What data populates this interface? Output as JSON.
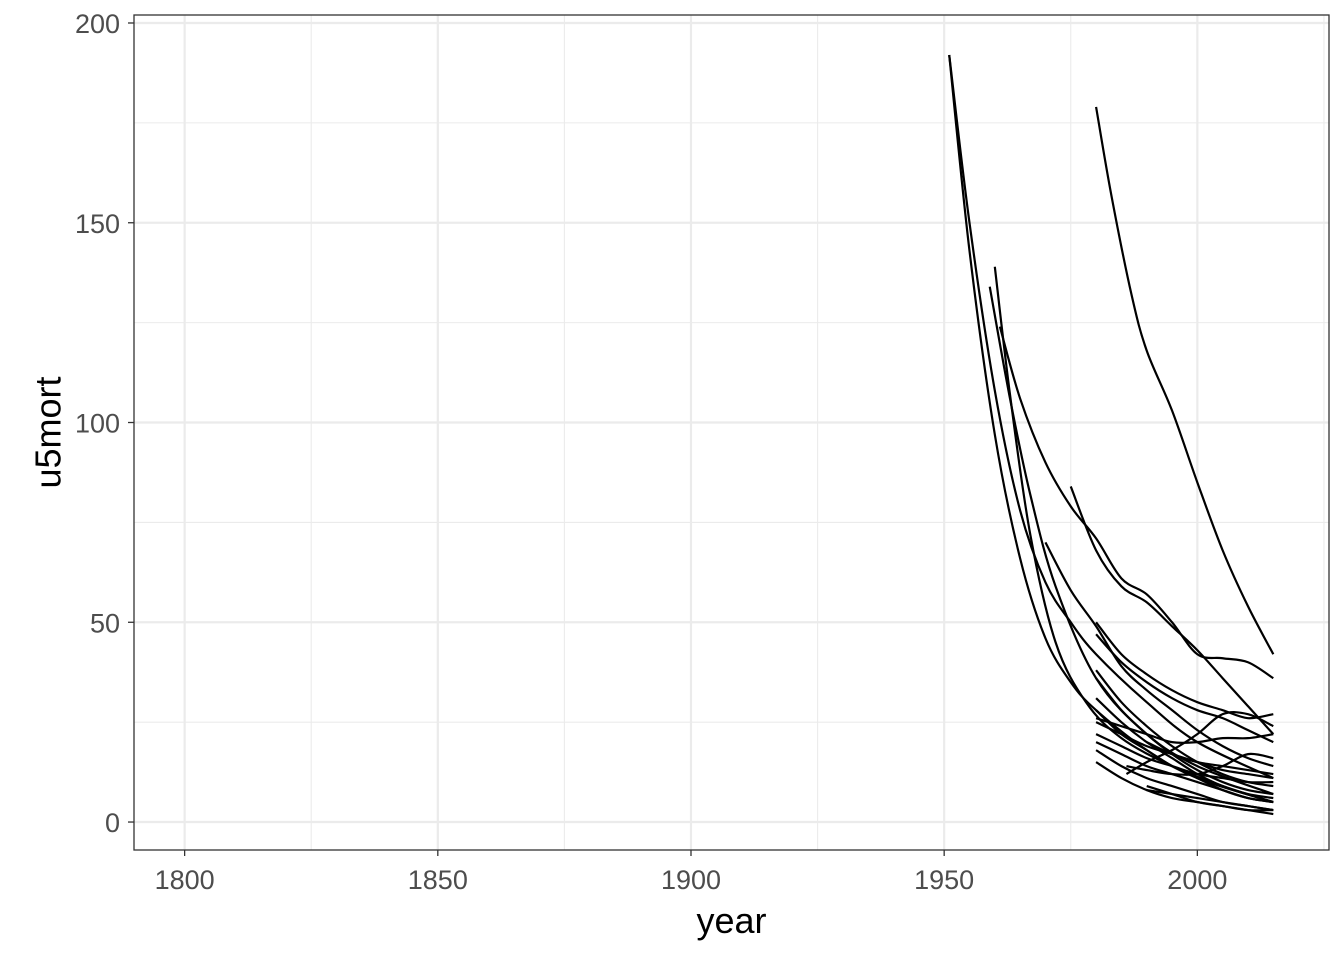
{
  "chart_data": {
    "type": "line",
    "title": "",
    "xlabel": "year",
    "ylabel": "u5mort",
    "xlim": [
      1790,
      2026
    ],
    "ylim": [
      -7,
      202
    ],
    "x_ticks": [
      1800,
      1850,
      1900,
      1950,
      2000
    ],
    "x_tick_labels": [
      "1800",
      "1850",
      "1900",
      "1950",
      "2000"
    ],
    "y_ticks": [
      0,
      50,
      100,
      150,
      200
    ],
    "y_tick_labels": [
      "0",
      "50",
      "100",
      "150",
      "200"
    ],
    "grid": true,
    "legend": "none",
    "series": [
      {
        "x": [
          1951,
          1955,
          1960,
          1965,
          1970,
          1975,
          1980,
          1990,
          2000,
          2015
        ],
        "y": [
          192,
          143,
          97,
          66,
          46,
          35,
          28,
          18,
          11,
          5
        ]
      },
      {
        "x": [
          1959,
          1963,
          1967,
          1972,
          1980,
          1990,
          2000,
          2015
        ],
        "y": [
          134,
          106,
          82,
          59,
          36,
          22,
          14,
          7
        ]
      },
      {
        "x": [
          1960,
          1963,
          1967,
          1972,
          1978,
          1985,
          1995,
          2005,
          2015
        ],
        "y": [
          139,
          107,
          72,
          45,
          30,
          21,
          14,
          9,
          5
        ]
      },
      {
        "x": [
          1951,
          1955,
          1960,
          1965,
          1970,
          1975,
          1980,
          1990,
          2000,
          2015
        ],
        "y": [
          192,
          150,
          108,
          78,
          60,
          50,
          42,
          30,
          20,
          11
        ]
      },
      {
        "x": [
          1961,
          1965,
          1970,
          1975,
          1980,
          1985,
          1990,
          1995,
          2000,
          2005,
          2010,
          2015
        ],
        "y": [
          124,
          106,
          90,
          79,
          71,
          61,
          57,
          50,
          42,
          41,
          40,
          36
        ]
      },
      {
        "x": [
          1975,
          1980,
          1985,
          1990,
          1995,
          2000,
          2005,
          2010,
          2015
        ],
        "y": [
          84,
          68,
          59,
          55,
          49,
          43,
          36,
          29,
          22
        ]
      },
      {
        "x": [
          1980,
          1983,
          1987,
          1990,
          1995,
          2000,
          2005,
          2010,
          2015
        ],
        "y": [
          179,
          157,
          132,
          118,
          103,
          85,
          68,
          54,
          42
        ]
      },
      {
        "x": [
          1970,
          1975,
          1980,
          1985,
          1990,
          1995,
          2000,
          2005,
          2010,
          2015
        ],
        "y": [
          70,
          58,
          49,
          39,
          33,
          28,
          23,
          19,
          16,
          14
        ]
      },
      {
        "x": [
          1980,
          1985,
          1990,
          1995,
          2000,
          2005,
          2010,
          2015
        ],
        "y": [
          47,
          40,
          35,
          31,
          28,
          26,
          23,
          20
        ]
      },
      {
        "x": [
          1980,
          1985,
          1990,
          1995,
          2000,
          2005,
          2010,
          2015
        ],
        "y": [
          50,
          42,
          37,
          33,
          30,
          28,
          26,
          27
        ]
      },
      {
        "x": [
          1980,
          1985,
          1990,
          1995,
          2000,
          2005,
          2010,
          2015
        ],
        "y": [
          38,
          30,
          24,
          19,
          15,
          12,
          10,
          9
        ]
      },
      {
        "x": [
          1980,
          1985,
          1990,
          1995,
          2000,
          2005,
          2010,
          2015
        ],
        "y": [
          36,
          28,
          22,
          17,
          13,
          10,
          8,
          7
        ]
      },
      {
        "x": [
          1980,
          1985,
          1990,
          1995,
          2000,
          2005,
          2010,
          2015
        ],
        "y": [
          31,
          25,
          20,
          16,
          12,
          9,
          7,
          6
        ]
      },
      {
        "x": [
          1980,
          1985,
          1990,
          1995,
          2000,
          2005,
          2010,
          2015
        ],
        "y": [
          28,
          22,
          18,
          14,
          11,
          8,
          6,
          5
        ]
      },
      {
        "x": [
          1980,
          1985,
          1990,
          1995,
          2000,
          2005,
          2010,
          2015
        ],
        "y": [
          26,
          24,
          22,
          20,
          20,
          21,
          21,
          22
        ]
      },
      {
        "x": [
          1980,
          1985,
          1990,
          1995,
          2000,
          2005,
          2010,
          2015
        ],
        "y": [
          25,
          22,
          19,
          17,
          15,
          13,
          12,
          11
        ]
      },
      {
        "x": [
          1980,
          1985,
          1990,
          1995,
          2000,
          2005,
          2010,
          2015
        ],
        "y": [
          22,
          19,
          16,
          14,
          12,
          11,
          10,
          10
        ]
      },
      {
        "x": [
          1980,
          1985,
          1990,
          1995,
          2000,
          2005,
          2010,
          2015
        ],
        "y": [
          20,
          17,
          14,
          12,
          10,
          8,
          6,
          5
        ]
      },
      {
        "x": [
          1980,
          1985,
          1990,
          1995,
          2000,
          2005,
          2010,
          2015
        ],
        "y": [
          15,
          11,
          8,
          6,
          5,
          4,
          3,
          3
        ]
      },
      {
        "x": [
          1980,
          1985,
          1990,
          1995,
          2000,
          2005,
          2010,
          2015
        ],
        "y": [
          18,
          14,
          11,
          9,
          7,
          5,
          4,
          3
        ]
      },
      {
        "x": [
          1986,
          1990,
          1995,
          2000,
          2005,
          2010,
          2015
        ],
        "y": [
          12,
          15,
          18,
          22,
          27,
          27,
          24
        ]
      },
      {
        "x": [
          1986,
          1990,
          1995,
          2000,
          2005,
          2010,
          2015
        ],
        "y": [
          14,
          13,
          12,
          12,
          14,
          17,
          16
        ]
      },
      {
        "x": [
          1990,
          1995,
          2000,
          2005,
          2010,
          2015
        ],
        "y": [
          8,
          7,
          6,
          5,
          4,
          3
        ]
      },
      {
        "x": [
          1990,
          1995,
          2000,
          2005,
          2010,
          2015
        ],
        "y": [
          9,
          7,
          5,
          4,
          3,
          2
        ]
      },
      {
        "x": [
          1990,
          1995,
          2000,
          2005,
          2010,
          2015
        ],
        "y": [
          20,
          17,
          15,
          14,
          13,
          12
        ]
      }
    ]
  }
}
